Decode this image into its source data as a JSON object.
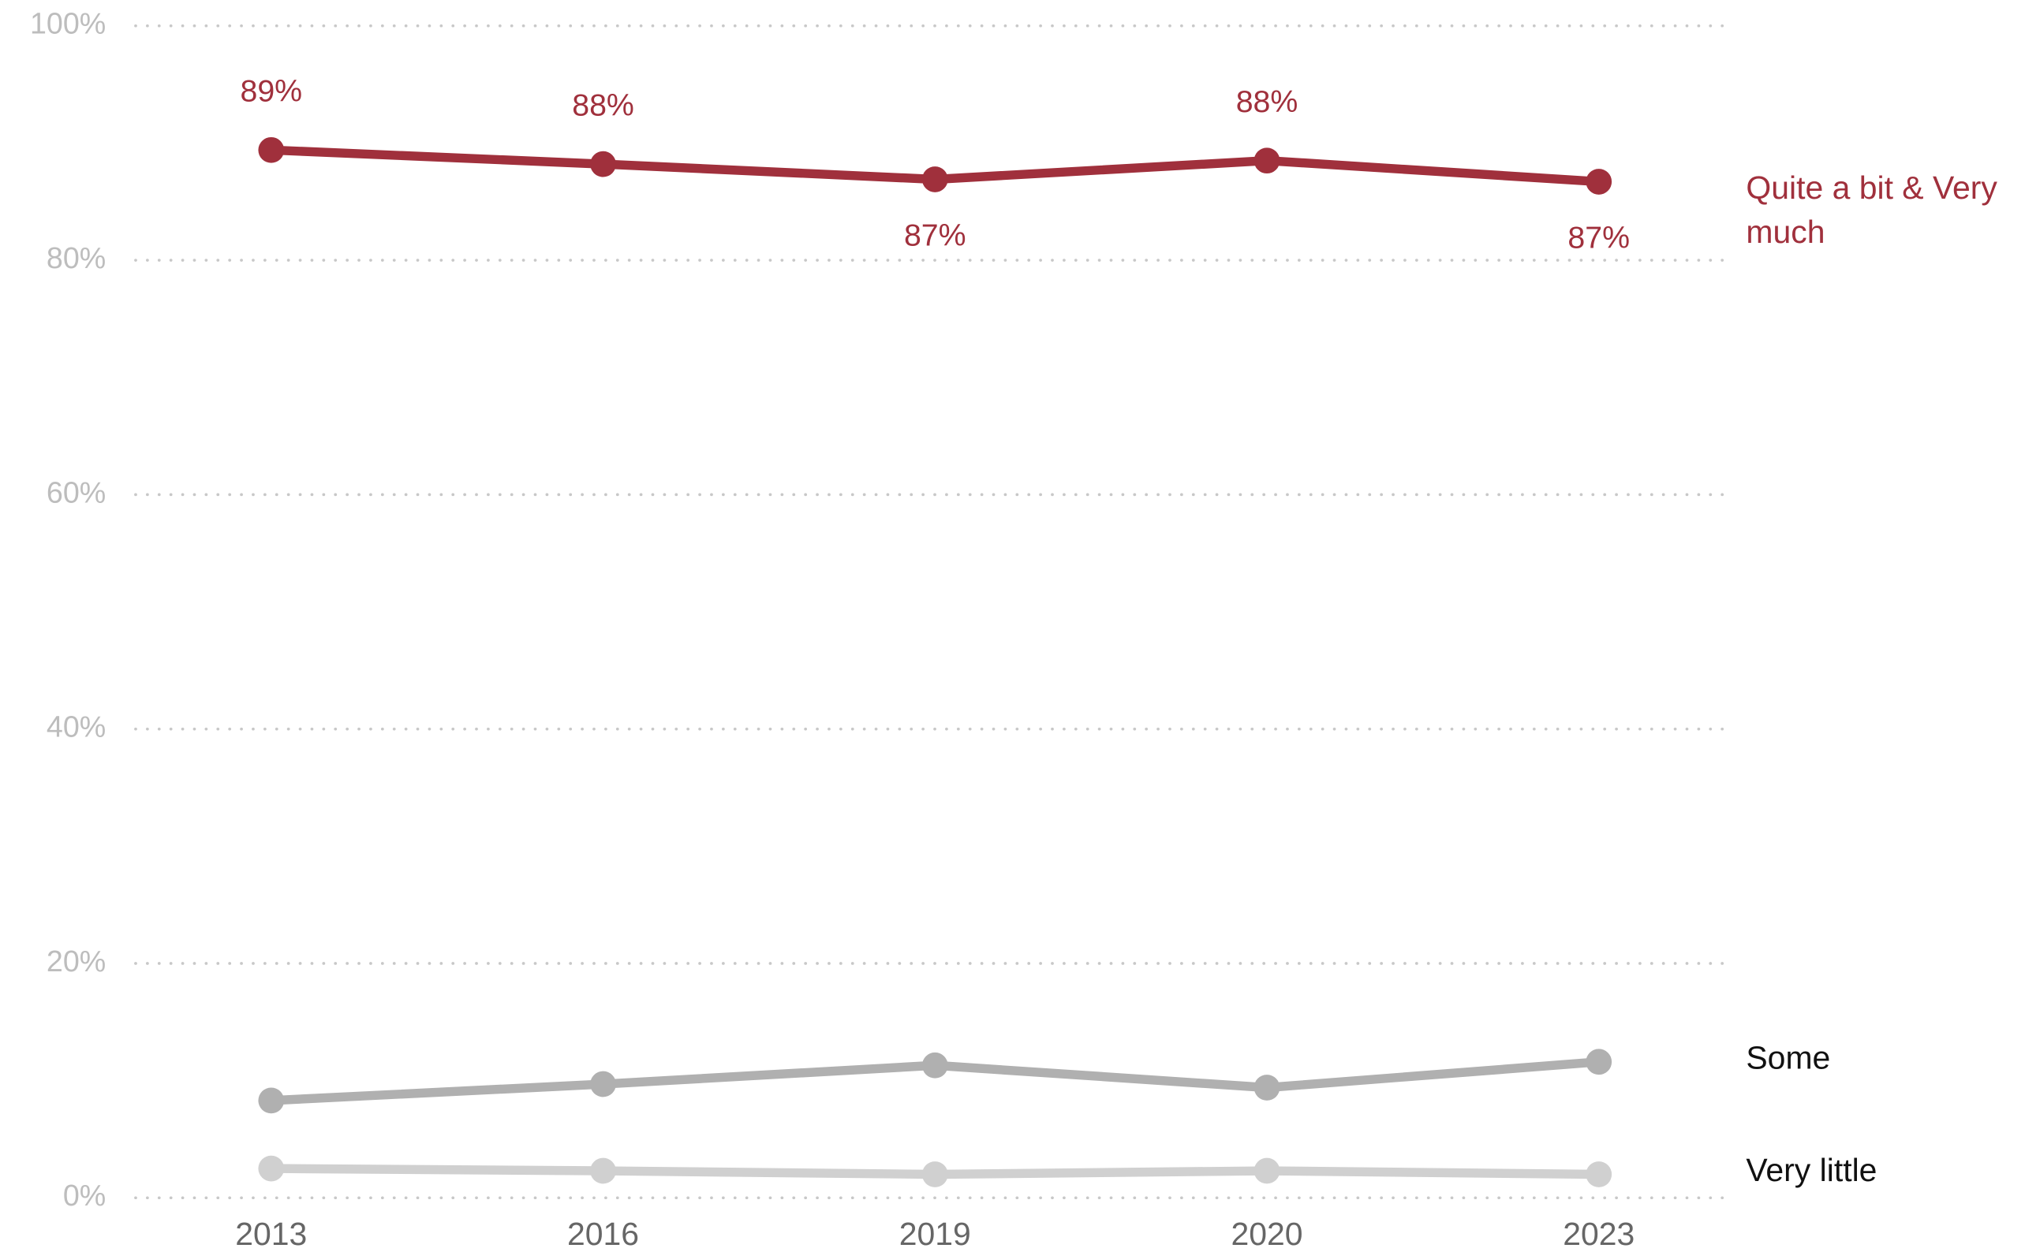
{
  "chart_data": {
    "type": "line",
    "categories": [
      "2013",
      "2016",
      "2019",
      "2020",
      "2023"
    ],
    "series": [
      {
        "name": "Quite a bit & Very much",
        "color": "#a0303c",
        "values": [
          89.4,
          88.2,
          86.9,
          88.5,
          86.7
        ],
        "value_labels": [
          "89%",
          "88%",
          "87%",
          "88%",
          "87%"
        ]
      },
      {
        "name": "Some",
        "color": "#b0b0b0",
        "values": [
          8.3,
          9.7,
          11.3,
          9.4,
          11.6
        ]
      },
      {
        "name": "Very little",
        "color": "#d0d0d0",
        "values": [
          2.5,
          2.3,
          2.0,
          2.3,
          2.0
        ]
      }
    ],
    "ylim": [
      0,
      100
    ],
    "yticks": [
      {
        "value": 0,
        "label": "0%"
      },
      {
        "value": 20,
        "label": "20%"
      },
      {
        "value": 40,
        "label": "40%"
      },
      {
        "value": 60,
        "label": "60%"
      },
      {
        "value": 80,
        "label": "80%"
      },
      {
        "value": 100,
        "label": "100%"
      }
    ],
    "grid": true
  }
}
